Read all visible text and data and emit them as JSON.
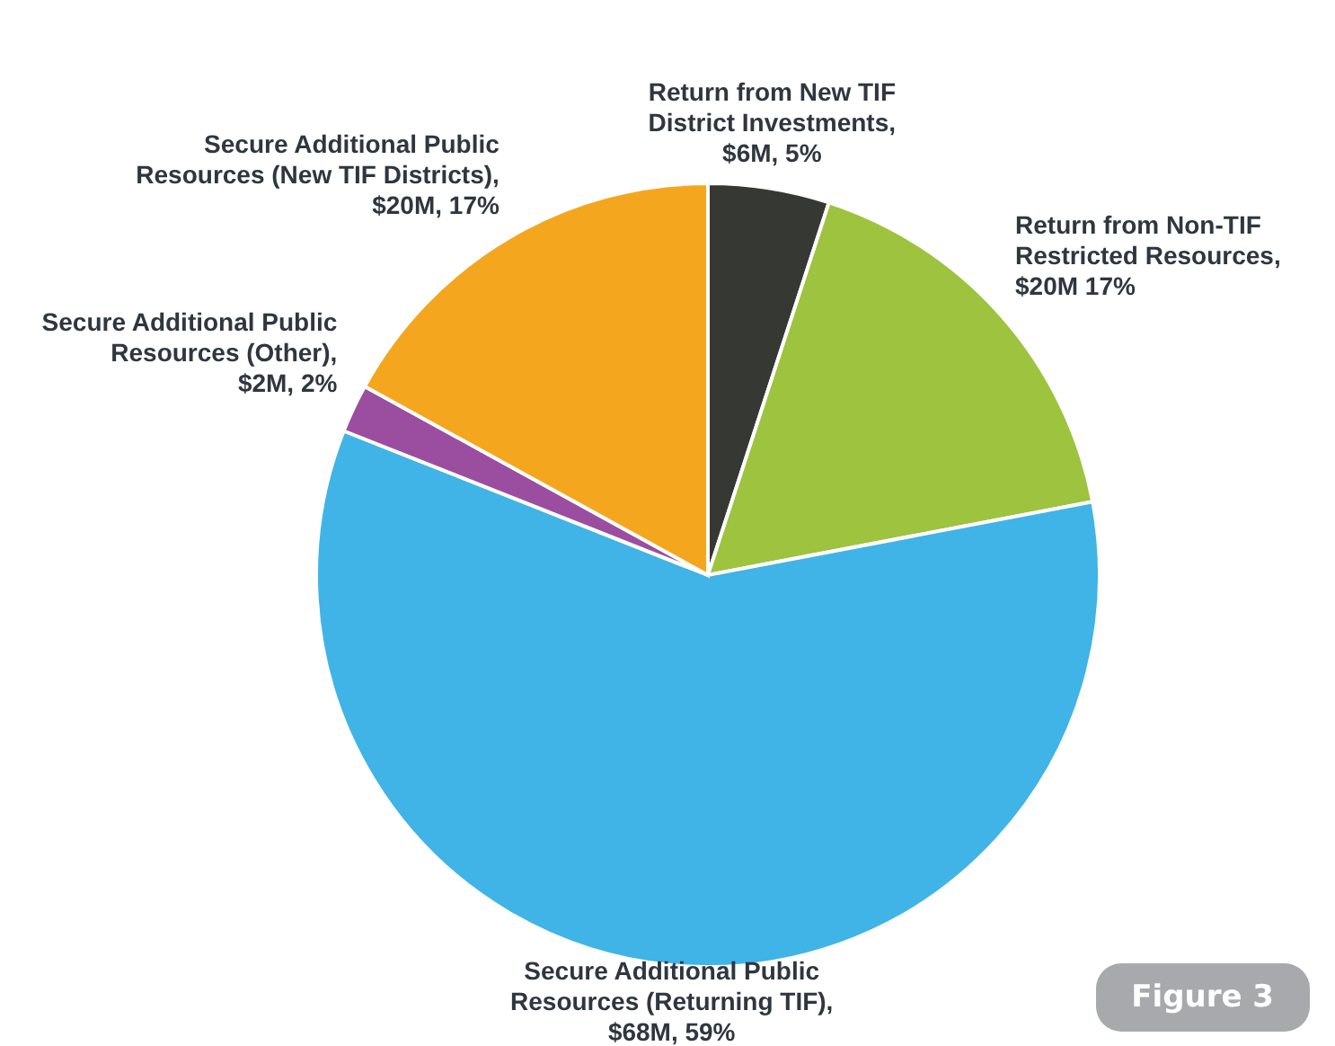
{
  "chart_data": {
    "type": "pie",
    "categories": [
      "Return from New TIF District Investments",
      "Return from Non-TIF Restricted Resources",
      "Secure Additional Public Resources (Returning TIF)",
      "Secure Additional Public Resources (Other)",
      "Secure Additional Public Resources (New TIF Districts)"
    ],
    "values": [
      5,
      17,
      59,
      2,
      17
    ],
    "value_labels": [
      ", $6M, 5%",
      ", $20M 17%",
      ", $68M, 59%",
      ", $2M, 2%",
      ", $20M, 17%"
    ],
    "colors": [
      "#363834",
      "#9dc33f",
      "#40b4e6",
      "#9b4ea0",
      "#f5a61f"
    ],
    "legend": false,
    "annotations": [
      "Figure 3"
    ]
  }
}
